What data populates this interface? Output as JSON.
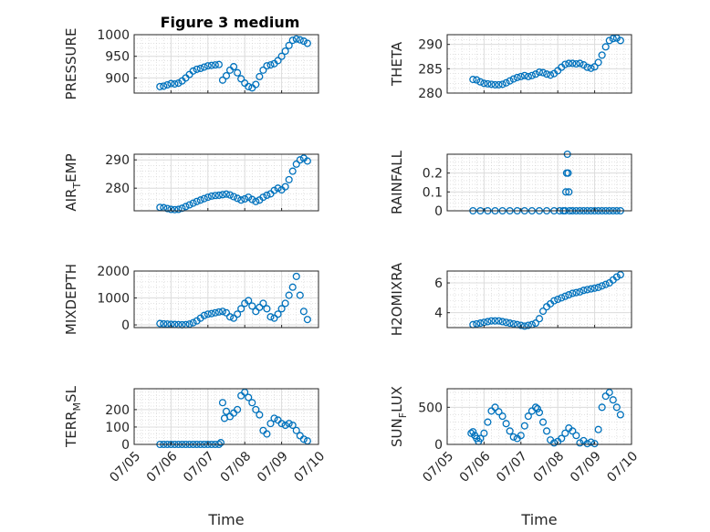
{
  "figure": {
    "title": "Figure 3 medium",
    "marker_color": "#0072BD"
  },
  "chart_data": [
    {
      "type": "scatter",
      "ylabel_parts": [
        {
          "t": "PRESSURE"
        }
      ],
      "ylim": [
        865,
        1000
      ],
      "yticks": [
        900,
        950,
        1000
      ],
      "xlim": [
        0,
        5
      ],
      "xticks": [
        0,
        1,
        2,
        3,
        4,
        5
      ],
      "xticklabels": [
        "07/05",
        "07/06",
        "07/07",
        "07/08",
        "07/09",
        "07/10"
      ],
      "grid": true,
      "x": [
        0.7,
        0.8,
        0.9,
        1.0,
        1.1,
        1.2,
        1.3,
        1.4,
        1.5,
        1.6,
        1.7,
        1.8,
        1.9,
        2.0,
        2.1,
        2.2,
        2.3,
        2.4,
        2.5,
        2.6,
        2.7,
        2.8,
        2.9,
        3.0,
        3.1,
        3.2,
        3.3,
        3.4,
        3.5,
        3.6,
        3.7,
        3.8,
        3.9,
        4.0,
        4.1,
        4.2,
        4.3,
        4.4,
        4.5,
        4.6,
        4.7
      ],
      "y": [
        880,
        881,
        884,
        887,
        886,
        888,
        893,
        900,
        908,
        916,
        920,
        922,
        925,
        928,
        929,
        930,
        931,
        895,
        905,
        918,
        926,
        912,
        898,
        888,
        880,
        877,
        885,
        903,
        918,
        928,
        930,
        933,
        940,
        950,
        962,
        975,
        987,
        990,
        988,
        985,
        980
      ],
      "xlabel": ""
    },
    {
      "type": "scatter",
      "ylabel_parts": [
        {
          "t": "THETA"
        }
      ],
      "ylim": [
        280,
        292
      ],
      "yticks": [
        280,
        285,
        290
      ],
      "xlim": [
        0,
        5
      ],
      "xticks": [
        0,
        1,
        2,
        3,
        4,
        5
      ],
      "xticklabels": [
        "07/05",
        "07/06",
        "07/07",
        "07/08",
        "07/09",
        "07/10"
      ],
      "grid": true,
      "x": [
        0.7,
        0.8,
        0.9,
        1.0,
        1.1,
        1.2,
        1.3,
        1.4,
        1.5,
        1.6,
        1.7,
        1.8,
        1.9,
        2.0,
        2.1,
        2.2,
        2.3,
        2.4,
        2.5,
        2.6,
        2.7,
        2.8,
        2.9,
        3.0,
        3.1,
        3.2,
        3.3,
        3.4,
        3.5,
        3.6,
        3.7,
        3.8,
        3.9,
        4.0,
        4.1,
        4.2,
        4.3,
        4.4,
        4.5,
        4.6,
        4.7
      ],
      "y": [
        282.8,
        282.7,
        282.3,
        282.0,
        281.9,
        281.8,
        281.7,
        281.7,
        281.8,
        282.1,
        282.5,
        282.9,
        283.2,
        283.4,
        283.6,
        283.4,
        283.6,
        283.9,
        284.3,
        284.2,
        283.9,
        283.7,
        284.0,
        284.6,
        285.3,
        285.9,
        286.1,
        286.1,
        286.0,
        286.1,
        285.8,
        285.3,
        285.1,
        285.4,
        286.3,
        287.8,
        289.5,
        290.8,
        291.2,
        291.3,
        290.8
      ],
      "xlabel": ""
    },
    {
      "type": "scatter",
      "ylabel_parts": [
        {
          "t": "AIR"
        },
        {
          "t": "T",
          "sub": true
        },
        {
          "t": "EMP"
        }
      ],
      "ylim": [
        272,
        292
      ],
      "yticks": [
        280,
        290
      ],
      "xlim": [
        0,
        5
      ],
      "xticks": [
        0,
        1,
        2,
        3,
        4,
        5
      ],
      "xticklabels": [
        "07/05",
        "07/06",
        "07/07",
        "07/08",
        "07/09",
        "07/10"
      ],
      "grid": true,
      "x": [
        0.7,
        0.8,
        0.9,
        1.0,
        1.1,
        1.2,
        1.3,
        1.4,
        1.5,
        1.6,
        1.7,
        1.8,
        1.9,
        2.0,
        2.1,
        2.2,
        2.3,
        2.4,
        2.5,
        2.6,
        2.7,
        2.8,
        2.9,
        3.0,
        3.1,
        3.2,
        3.3,
        3.4,
        3.5,
        3.6,
        3.7,
        3.8,
        3.9,
        4.0,
        4.1,
        4.2,
        4.3,
        4.4,
        4.5,
        4.6,
        4.7
      ],
      "y": [
        273.2,
        273.1,
        272.8,
        272.5,
        272.4,
        272.5,
        272.9,
        273.5,
        274.1,
        274.7,
        275.3,
        275.8,
        276.3,
        276.8,
        277.2,
        277.4,
        277.5,
        277.7,
        277.9,
        277.6,
        277.0,
        276.4,
        275.8,
        276.2,
        276.8,
        276.0,
        275.3,
        275.8,
        276.8,
        277.5,
        278.0,
        279.2,
        280.0,
        279.4,
        280.5,
        283.0,
        286.0,
        288.5,
        290.0,
        290.6,
        289.6
      ],
      "xlabel": ""
    },
    {
      "type": "scatter",
      "ylabel_parts": [
        {
          "t": "RAINFALL"
        }
      ],
      "ylim": [
        0,
        0.3
      ],
      "yticks": [
        0,
        0.1,
        0.2
      ],
      "xlim": [
        0,
        5
      ],
      "xticks": [
        0,
        1,
        2,
        3,
        4,
        5
      ],
      "xticklabels": [
        "07/05",
        "07/06",
        "07/07",
        "07/08",
        "07/09",
        "07/10"
      ],
      "grid": true,
      "x": [
        0.7,
        0.9,
        1.1,
        1.3,
        1.5,
        1.7,
        1.9,
        2.1,
        2.3,
        2.5,
        2.7,
        2.9,
        3.05,
        3.15,
        3.2,
        3.22,
        3.24,
        3.26,
        3.28,
        3.3,
        3.32,
        3.4,
        3.5,
        3.6,
        3.7,
        3.8,
        3.9,
        4.0,
        4.1,
        4.2,
        4.3,
        4.4,
        4.5,
        4.6,
        4.7
      ],
      "y": [
        0,
        0,
        0,
        0,
        0,
        0,
        0,
        0,
        0,
        0,
        0,
        0,
        0,
        0,
        0,
        0.1,
        0.2,
        0.3,
        0.2,
        0.1,
        0,
        0,
        0,
        0,
        0,
        0,
        0,
        0,
        0,
        0,
        0,
        0,
        0,
        0,
        0
      ],
      "xlabel": ""
    },
    {
      "type": "scatter",
      "ylabel_parts": [
        {
          "t": "MIXDEPTH"
        }
      ],
      "ylim": [
        -100,
        2000
      ],
      "yticks": [
        0,
        1000,
        2000
      ],
      "xlim": [
        0,
        5
      ],
      "xticks": [
        0,
        1,
        2,
        3,
        4,
        5
      ],
      "xticklabels": [
        "07/05",
        "07/06",
        "07/07",
        "07/08",
        "07/09",
        "07/10"
      ],
      "grid": true,
      "x": [
        0.7,
        0.8,
        0.9,
        1.0,
        1.1,
        1.2,
        1.3,
        1.4,
        1.5,
        1.6,
        1.7,
        1.8,
        1.9,
        2.0,
        2.1,
        2.2,
        2.3,
        2.4,
        2.5,
        2.6,
        2.7,
        2.8,
        2.9,
        3.0,
        3.1,
        3.2,
        3.3,
        3.4,
        3.5,
        3.6,
        3.7,
        3.8,
        3.9,
        4.0,
        4.1,
        4.2,
        4.3,
        4.4,
        4.5,
        4.6,
        4.7
      ],
      "y": [
        50,
        40,
        30,
        20,
        15,
        10,
        5,
        10,
        30,
        80,
        150,
        250,
        350,
        400,
        420,
        450,
        480,
        500,
        450,
        300,
        250,
        400,
        600,
        800,
        900,
        700,
        500,
        650,
        800,
        600,
        300,
        250,
        400,
        600,
        800,
        1100,
        1400,
        1800,
        1100,
        500,
        200
      ],
      "xlabel": ""
    },
    {
      "type": "scatter",
      "ylabel_parts": [
        {
          "t": "H2OMIXRA"
        }
      ],
      "ylim": [
        3,
        6.8
      ],
      "yticks": [
        4,
        6
      ],
      "xlim": [
        0,
        5
      ],
      "xticks": [
        0,
        1,
        2,
        3,
        4,
        5
      ],
      "xticklabels": [
        "07/05",
        "07/06",
        "07/07",
        "07/08",
        "07/09",
        "07/10"
      ],
      "grid": true,
      "x": [
        0.7,
        0.8,
        0.9,
        1.0,
        1.1,
        1.2,
        1.3,
        1.4,
        1.5,
        1.6,
        1.7,
        1.8,
        1.9,
        2.0,
        2.1,
        2.2,
        2.3,
        2.4,
        2.5,
        2.6,
        2.7,
        2.8,
        2.9,
        3.0,
        3.1,
        3.2,
        3.3,
        3.4,
        3.5,
        3.6,
        3.7,
        3.8,
        3.9,
        4.0,
        4.1,
        4.2,
        4.3,
        4.4,
        4.5,
        4.6,
        4.7
      ],
      "y": [
        3.2,
        3.25,
        3.3,
        3.35,
        3.4,
        3.45,
        3.45,
        3.45,
        3.4,
        3.35,
        3.3,
        3.25,
        3.2,
        3.15,
        3.1,
        3.15,
        3.2,
        3.3,
        3.6,
        4.1,
        4.4,
        4.6,
        4.8,
        4.9,
        5.0,
        5.1,
        5.2,
        5.3,
        5.35,
        5.4,
        5.5,
        5.55,
        5.6,
        5.65,
        5.7,
        5.8,
        5.9,
        6.0,
        6.2,
        6.4,
        6.55
      ],
      "xlabel": ""
    },
    {
      "type": "scatter",
      "ylabel_parts": [
        {
          "t": "TERR"
        },
        {
          "t": "M",
          "sub": true
        },
        {
          "t": "SL"
        }
      ],
      "ylim": [
        0,
        320
      ],
      "yticks": [
        0,
        100,
        200
      ],
      "xlim": [
        0,
        5
      ],
      "xticks": [
        0,
        1,
        2,
        3,
        4,
        5
      ],
      "xticklabels": [
        "07/05",
        "07/06",
        "07/07",
        "07/08",
        "07/09",
        "07/10"
      ],
      "grid": true,
      "x": [
        0.7,
        0.8,
        0.9,
        1.0,
        1.1,
        1.2,
        1.3,
        1.4,
        1.5,
        1.6,
        1.7,
        1.8,
        1.9,
        2.0,
        2.1,
        2.2,
        2.3,
        2.35,
        2.4,
        2.45,
        2.5,
        2.6,
        2.7,
        2.8,
        2.9,
        3.0,
        3.1,
        3.2,
        3.3,
        3.4,
        3.5,
        3.6,
        3.7,
        3.8,
        3.9,
        4.0,
        4.1,
        4.2,
        4.3,
        4.4,
        4.5,
        4.6,
        4.7
      ],
      "y": [
        0,
        0,
        0,
        0,
        0,
        0,
        0,
        0,
        0,
        0,
        0,
        0,
        0,
        0,
        0,
        0,
        0,
        10,
        240,
        150,
        190,
        160,
        180,
        200,
        280,
        300,
        270,
        240,
        200,
        170,
        80,
        60,
        120,
        150,
        140,
        120,
        110,
        120,
        110,
        80,
        50,
        30,
        20
      ],
      "xlabel": "Time"
    },
    {
      "type": "scatter",
      "ylabel_parts": [
        {
          "t": "SUN"
        },
        {
          "t": "F",
          "sub": true
        },
        {
          "t": "LUX"
        }
      ],
      "ylim": [
        0,
        750
      ],
      "yticks": [
        0,
        500
      ],
      "xlim": [
        0,
        5
      ],
      "xticks": [
        0,
        1,
        2,
        3,
        4,
        5
      ],
      "xticklabels": [
        "07/05",
        "07/06",
        "07/07",
        "07/08",
        "07/09",
        "07/10"
      ],
      "grid": true,
      "x": [
        0.65,
        0.7,
        0.75,
        0.8,
        0.85,
        0.9,
        1.0,
        1.1,
        1.2,
        1.3,
        1.4,
        1.5,
        1.6,
        1.7,
        1.8,
        1.9,
        2.0,
        2.1,
        2.2,
        2.3,
        2.4,
        2.45,
        2.5,
        2.6,
        2.7,
        2.8,
        2.9,
        3.0,
        3.1,
        3.2,
        3.3,
        3.4,
        3.5,
        3.6,
        3.7,
        3.8,
        3.9,
        4.0,
        4.1,
        4.2,
        4.3,
        4.4,
        4.5,
        4.6,
        4.7
      ],
      "y": [
        150,
        170,
        120,
        80,
        40,
        80,
        150,
        300,
        450,
        500,
        440,
        380,
        280,
        180,
        100,
        80,
        120,
        250,
        380,
        450,
        500,
        480,
        430,
        300,
        180,
        60,
        20,
        40,
        80,
        150,
        220,
        180,
        120,
        20,
        50,
        10,
        30,
        10,
        200,
        500,
        650,
        700,
        600,
        500,
        400
      ],
      "xlabel": "Time"
    }
  ]
}
